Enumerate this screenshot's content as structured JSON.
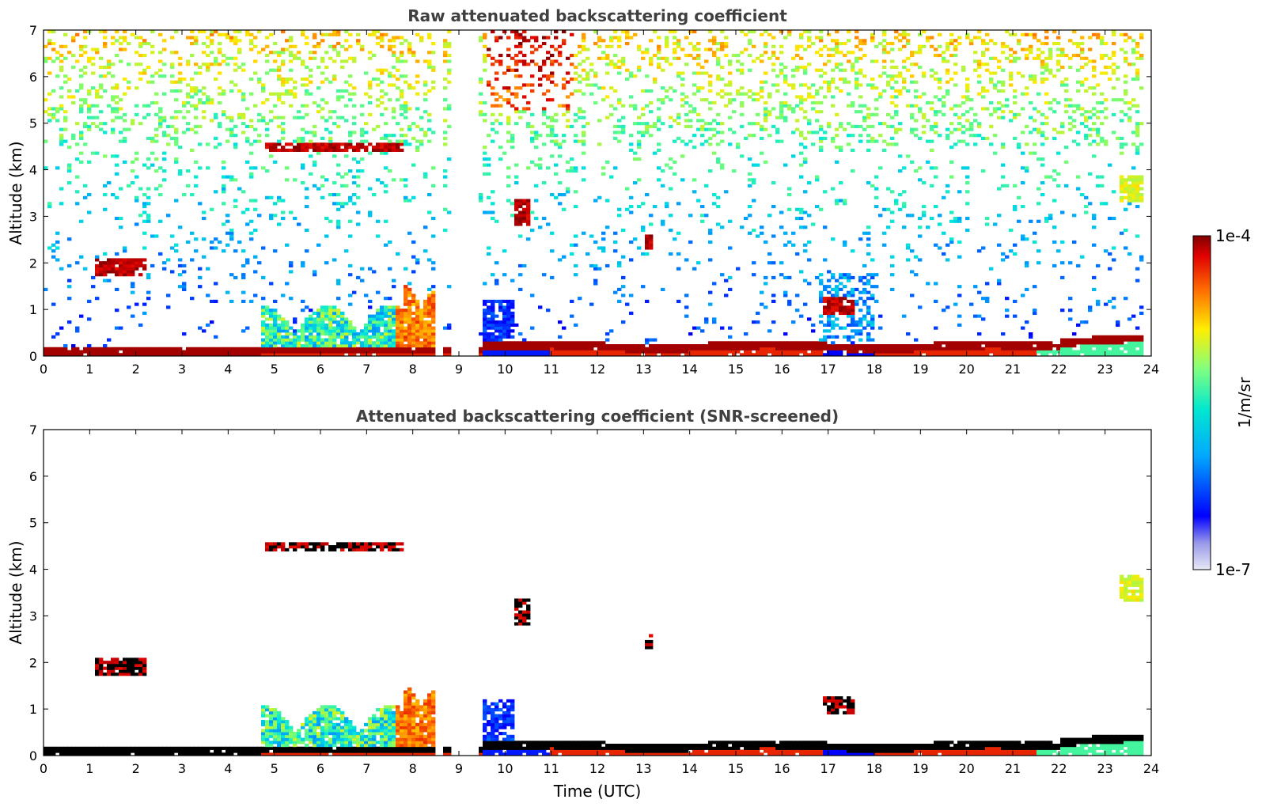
{
  "chart_data": [
    {
      "type": "heatmap",
      "title": "Raw attenuated backscattering coefficient",
      "xlabel": "",
      "ylabel": "Altitude (km)",
      "xlim": [
        0,
        24
      ],
      "ylim": [
        0,
        7
      ],
      "xticks": [
        "0",
        "1",
        "2",
        "3",
        "4",
        "5",
        "6",
        "7",
        "8",
        "9",
        "10",
        "11",
        "12",
        "13",
        "14",
        "15",
        "16",
        "17",
        "18",
        "19",
        "20",
        "21",
        "22",
        "23",
        "24"
      ],
      "yticks": [
        "0",
        "1",
        "2",
        "3",
        "4",
        "5",
        "6",
        "7"
      ],
      "data_gaps_hours": [
        [
          8.5,
          8.65
        ],
        [
          8.82,
          9.45
        ]
      ],
      "features": [
        {
          "name": "boundary layer top",
          "x_range": [
            0,
            24
          ],
          "altitude_km": [
            0.05,
            0.45
          ],
          "level": "high"
        },
        {
          "name": "aerosol plume",
          "x_range": [
            4.7,
            8.5
          ],
          "altitude_km": [
            0,
            1.5
          ],
          "level": "medium-high"
        },
        {
          "name": "cloud",
          "x_range": [
            1.1,
            2.2
          ],
          "altitude_km": [
            1.7,
            2.1
          ],
          "level": "high"
        },
        {
          "name": "cloud",
          "x_range": [
            4.8,
            7.8
          ],
          "altitude_km": [
            4.4,
            4.6
          ],
          "level": "high"
        },
        {
          "name": "cloud",
          "x_range": [
            10.2,
            10.5
          ],
          "altitude_km": [
            2.8,
            3.4
          ],
          "level": "high"
        },
        {
          "name": "cloud",
          "x_range": [
            13.0,
            13.2
          ],
          "altitude_km": [
            2.3,
            2.6
          ],
          "level": "high"
        },
        {
          "name": "cloud",
          "x_range": [
            16.9,
            17.6
          ],
          "altitude_km": [
            0.9,
            1.3
          ],
          "level": "high"
        },
        {
          "name": "cloud",
          "x_range": [
            23.3,
            23.8
          ],
          "altitude_km": [
            3.3,
            3.9
          ],
          "level": "medium"
        }
      ]
    },
    {
      "type": "heatmap",
      "title": "Attenuated backscattering coefficient (SNR-screened)",
      "xlabel": "Time (UTC)",
      "ylabel": "Altitude (km)",
      "xlim": [
        0,
        24
      ],
      "ylim": [
        0,
        7
      ],
      "xticks": [
        "0",
        "1",
        "2",
        "3",
        "4",
        "5",
        "6",
        "7",
        "8",
        "9",
        "10",
        "11",
        "12",
        "13",
        "14",
        "15",
        "16",
        "17",
        "18",
        "19",
        "20",
        "21",
        "22",
        "23",
        "24"
      ],
      "yticks": [
        "0",
        "1",
        "2",
        "3",
        "4",
        "5",
        "6",
        "7"
      ]
    }
  ],
  "colorbar": {
    "label": "1/m/sr",
    "max_label": "1e-4",
    "min_label": "1e-7",
    "scale": "log",
    "colormap": "jet"
  }
}
